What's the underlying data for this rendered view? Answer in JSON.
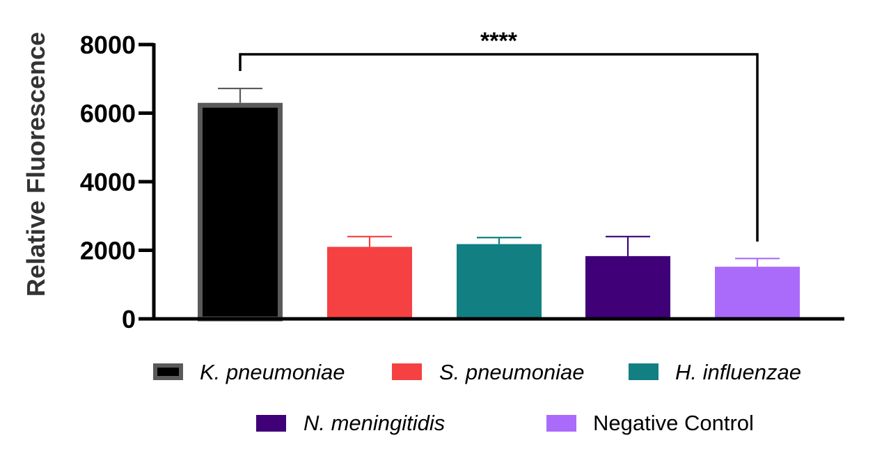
{
  "chart_data": {
    "type": "bar",
    "ylabel": "Relative Fluorescence",
    "ylim": [
      0,
      8000
    ],
    "yticks": [
      "0",
      "2000",
      "4000",
      "6000",
      "8000"
    ],
    "categories": [
      "K. pneumoniae",
      "S. pneumoniae",
      "H. influenzae",
      "N. meningitidis",
      "Negative Control"
    ],
    "values": [
      6300,
      2100,
      2180,
      1830,
      1520
    ],
    "errors": [
      420,
      300,
      190,
      570,
      240
    ],
    "colors": [
      "#000000",
      "#f54141",
      "#127f82",
      "#3f0078",
      "#ab6bfa"
    ],
    "edge_colors": [
      "#5a5a5a",
      "#f54141",
      "#127f82",
      "#3f0078",
      "#ab6bfa"
    ],
    "legend": {
      "placement": "bottom",
      "italic": [
        true,
        true,
        true,
        true,
        false
      ]
    },
    "significance": {
      "label": "****",
      "from": "K. pneumoniae",
      "to": "Negative Control"
    },
    "grid": false
  }
}
